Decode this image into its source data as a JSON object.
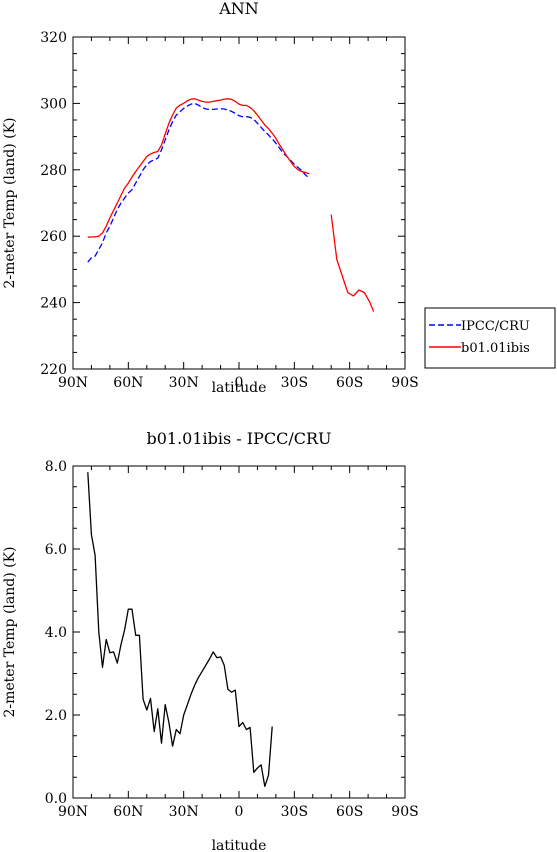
{
  "chart_data": [
    {
      "type": "line",
      "title": "ANN",
      "xlabel": "latitude",
      "ylabel": "2-meter Temp (land) (K)",
      "xlim": [
        90,
        -90
      ],
      "ylim": [
        220,
        320
      ],
      "x_ticks": [
        90,
        60,
        30,
        0,
        -30,
        -60,
        -90
      ],
      "x_tick_labels": [
        "90N",
        "60N",
        "30N",
        "0",
        "30S",
        "60S",
        "90S"
      ],
      "y_ticks": [
        220,
        240,
        260,
        280,
        300,
        320
      ],
      "y_tick_labels": [
        "220",
        "240",
        "260",
        "280",
        "300",
        "320"
      ],
      "grid": false,
      "legend": {
        "position": "outside-right",
        "entries": [
          "IPCC/CRU",
          "b01.01ibis"
        ]
      },
      "series": [
        {
          "name": "IPCC/CRU",
          "color": "#0000ff",
          "dash": "dashed",
          "segments": [
            [
              [
                82,
                252.2
              ],
              [
                80,
                253.5
              ],
              [
                78,
                254.0
              ],
              [
                76,
                256.0
              ],
              [
                74,
                258.0
              ],
              [
                72,
                261.0
              ],
              [
                70,
                263.0
              ],
              [
                68,
                265.5
              ],
              [
                66,
                268.0
              ],
              [
                64,
                270.0
              ],
              [
                62,
                271.5
              ],
              [
                60,
                273.0
              ],
              [
                58,
                274.0
              ],
              [
                56,
                276.0
              ],
              [
                54,
                278.0
              ],
              [
                52,
                280.0
              ],
              [
                50,
                281.5
              ],
              [
                48,
                282.5
              ],
              [
                46,
                283.0
              ],
              [
                44,
                283.5
              ],
              [
                42,
                286.0
              ],
              [
                40,
                289.0
              ],
              [
                38,
                292.0
              ],
              [
                36,
                294.5
              ],
              [
                34,
                296.5
              ],
              [
                32,
                297.5
              ],
              [
                30,
                298.5
              ],
              [
                28,
                299.2
              ],
              [
                26,
                299.8
              ],
              [
                24,
                300.0
              ],
              [
                22,
                299.5
              ],
              [
                20,
                298.8
              ],
              [
                18,
                298.3
              ],
              [
                16,
                298.2
              ],
              [
                14,
                298.2
              ],
              [
                12,
                298.3
              ],
              [
                10,
                298.4
              ],
              [
                8,
                298.3
              ],
              [
                6,
                298.0
              ],
              [
                4,
                297.6
              ],
              [
                2,
                297.0
              ],
              [
                0,
                296.3
              ],
              [
                -2,
                296.0
              ],
              [
                -4,
                296.0
              ],
              [
                -6,
                295.8
              ],
              [
                -8,
                295.2
              ],
              [
                -10,
                294.0
              ],
              [
                -12,
                292.8
              ],
              [
                -14,
                291.5
              ],
              [
                -16,
                290.5
              ],
              [
                -18,
                289.3
              ],
              [
                -20,
                288.0
              ],
              [
                -22,
                286.5
              ],
              [
                -24,
                285.0
              ],
              [
                -26,
                284.0
              ],
              [
                -28,
                282.8
              ],
              [
                -30,
                281.7
              ],
              [
                -32,
                280.7
              ],
              [
                -34,
                279.8
              ],
              [
                -36,
                278.5
              ],
              [
                -38,
                277.5
              ]
            ]
          ]
        },
        {
          "name": "b01.01ibis",
          "color": "#ff0000",
          "dash": "solid",
          "segments": [
            [
              [
                82,
                259.7
              ],
              [
                80,
                259.8
              ],
              [
                78,
                259.8
              ],
              [
                76,
                260.0
              ],
              [
                74,
                261.0
              ],
              [
                72,
                263.0
              ],
              [
                70,
                265.5
              ],
              [
                68,
                267.8
              ],
              [
                66,
                270.0
              ],
              [
                64,
                272.3
              ],
              [
                62,
                274.5
              ],
              [
                60,
                276.0
              ],
              [
                58,
                277.8
              ],
              [
                56,
                279.5
              ],
              [
                54,
                281.0
              ],
              [
                52,
                282.5
              ],
              [
                50,
                284.0
              ],
              [
                48,
                284.8
              ],
              [
                46,
                285.2
              ],
              [
                44,
                285.5
              ],
              [
                42,
                287.5
              ],
              [
                40,
                290.8
              ],
              [
                38,
                294.0
              ],
              [
                36,
                296.5
              ],
              [
                34,
                298.6
              ],
              [
                32,
                299.5
              ],
              [
                30,
                300.0
              ],
              [
                28,
                300.8
              ],
              [
                26,
                301.3
              ],
              [
                24,
                301.4
              ],
              [
                22,
                301.0
              ],
              [
                20,
                300.6
              ],
              [
                18,
                300.4
              ],
              [
                16,
                300.4
              ],
              [
                14,
                300.6
              ],
              [
                12,
                300.8
              ],
              [
                10,
                301.0
              ],
              [
                8,
                301.3
              ],
              [
                6,
                301.4
              ],
              [
                4,
                301.2
              ],
              [
                2,
                300.6
              ],
              [
                0,
                299.8
              ],
              [
                -2,
                299.4
              ],
              [
                -4,
                299.4
              ],
              [
                -6,
                298.8
              ],
              [
                -8,
                297.8
              ],
              [
                -10,
                296.5
              ],
              [
                -12,
                295.0
              ],
              [
                -14,
                293.5
              ],
              [
                -16,
                292.4
              ],
              [
                -18,
                291.0
              ],
              [
                -20,
                289.5
              ],
              [
                -22,
                287.5
              ],
              [
                -24,
                285.8
              ],
              [
                -26,
                284.0
              ],
              [
                -28,
                282.5
              ],
              [
                -30,
                281.0
              ],
              [
                -32,
                280.0
              ],
              [
                -34,
                279.5
              ],
              [
                -36,
                279.2
              ],
              [
                -38,
                278.8
              ]
            ],
            [
              [
                -50,
                266.5
              ],
              [
                -53,
                253.0
              ],
              [
                -56,
                248.0
              ],
              [
                -59,
                243.0
              ],
              [
                -62,
                242.0
              ],
              [
                -65,
                243.8
              ],
              [
                -68,
                243.0
              ],
              [
                -71,
                240.0
              ],
              [
                -73,
                237.3
              ]
            ]
          ]
        }
      ]
    },
    {
      "type": "line",
      "title": "b01.01ibis - IPCC/CRU",
      "xlabel": "latitude",
      "ylabel": "2-meter Temp (land) (K)",
      "xlim": [
        90,
        -90
      ],
      "ylim": [
        0,
        8
      ],
      "x_ticks": [
        90,
        60,
        30,
        0,
        -30,
        -60,
        -90
      ],
      "x_tick_labels": [
        "90N",
        "60N",
        "30N",
        "0",
        "30S",
        "60S",
        "90S"
      ],
      "y_ticks": [
        0,
        2,
        4,
        6,
        8
      ],
      "y_tick_labels": [
        "0.0",
        "2.0",
        "4.0",
        "6.0",
        "8.0"
      ],
      "grid": false,
      "series": [
        {
          "color": "#000000",
          "dash": "solid",
          "segments": [
            [
              [
                82,
                7.85
              ],
              [
                80,
                6.35
              ],
              [
                78,
                5.85
              ],
              [
                76,
                4.0
              ],
              [
                74,
                3.15
              ],
              [
                72,
                3.82
              ],
              [
                70,
                3.5
              ],
              [
                68,
                3.52
              ],
              [
                66,
                3.25
              ],
              [
                64,
                3.7
              ],
              [
                62,
                4.05
              ],
              [
                60,
                4.55
              ],
              [
                58,
                4.55
              ],
              [
                56,
                3.92
              ],
              [
                54,
                3.92
              ],
              [
                52,
                2.38
              ],
              [
                50,
                2.12
              ],
              [
                48,
                2.4
              ],
              [
                46,
                1.6
              ],
              [
                44,
                2.15
              ],
              [
                42,
                1.32
              ],
              [
                40,
                2.25
              ],
              [
                38,
                1.82
              ],
              [
                36,
                1.25
              ],
              [
                34,
                1.65
              ],
              [
                32,
                1.55
              ],
              [
                30,
                2.0
              ],
              [
                28,
                2.25
              ],
              [
                26,
                2.5
              ],
              [
                24,
                2.72
              ],
              [
                22,
                2.9
              ],
              [
                20,
                3.05
              ],
              [
                18,
                3.2
              ],
              [
                16,
                3.35
              ],
              [
                14,
                3.52
              ],
              [
                12,
                3.38
              ],
              [
                10,
                3.4
              ],
              [
                8,
                3.2
              ],
              [
                6,
                2.62
              ],
              [
                4,
                2.55
              ],
              [
                2,
                2.6
              ],
              [
                0,
                1.72
              ],
              [
                -2,
                1.82
              ],
              [
                -4,
                1.65
              ],
              [
                -6,
                1.7
              ],
              [
                -8,
                0.62
              ],
              [
                -10,
                0.72
              ],
              [
                -12,
                0.8
              ],
              [
                -14,
                0.28
              ],
              [
                -16,
                0.55
              ],
              [
                -18,
                1.72
              ]
            ]
          ]
        }
      ]
    }
  ]
}
